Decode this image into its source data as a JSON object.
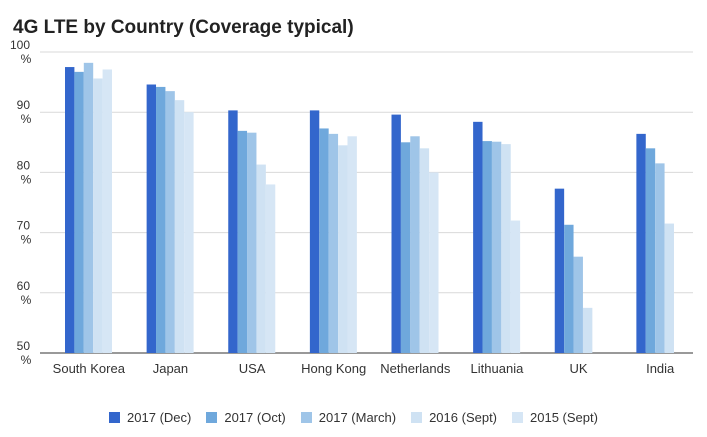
{
  "chart_data": {
    "type": "bar",
    "title": "4G LTE by Country (Coverage typical)",
    "xlabel": "",
    "ylabel": "",
    "ylim": [
      50,
      100
    ],
    "y_ticks": [
      {
        "value": 50,
        "label": "50",
        "unit": "%"
      },
      {
        "value": 60,
        "label": "60",
        "unit": "%"
      },
      {
        "value": 70,
        "label": "70",
        "unit": "%"
      },
      {
        "value": 80,
        "label": "80",
        "unit": "%"
      },
      {
        "value": 90,
        "label": "90",
        "unit": "%"
      },
      {
        "value": 100,
        "label": "100",
        "unit": "%"
      }
    ],
    "categories": [
      "South Korea",
      "Japan",
      "USA",
      "Hong Kong",
      "Netherlands",
      "Lithuania",
      "UK",
      "India"
    ],
    "series": [
      {
        "name": "2017 (Dec)",
        "color": "#3366cc",
        "values": [
          97.5,
          94.6,
          90.3,
          90.3,
          89.6,
          88.4,
          77.3,
          86.4
        ]
      },
      {
        "name": "2017 (Oct)",
        "color": "#6fa8dc",
        "values": [
          96.7,
          94.2,
          86.9,
          87.3,
          85.0,
          85.2,
          71.3,
          84.0
        ]
      },
      {
        "name": "2017 (March)",
        "color": "#9fc5e8",
        "values": [
          98.2,
          93.5,
          86.6,
          86.4,
          86.0,
          85.1,
          66.0,
          81.5
        ]
      },
      {
        "name": "2016 (Sept)",
        "color": "#cfe2f3",
        "values": [
          95.6,
          92.0,
          81.3,
          84.5,
          84.0,
          84.7,
          57.5,
          71.5
        ]
      },
      {
        "name": "2015 (Sept)",
        "color": "#d6e6f5",
        "values": [
          97.1,
          90.0,
          78.0,
          86.0,
          80.0,
          72.0,
          null,
          null
        ]
      }
    ],
    "legend_position": "bottom",
    "grid": true
  }
}
